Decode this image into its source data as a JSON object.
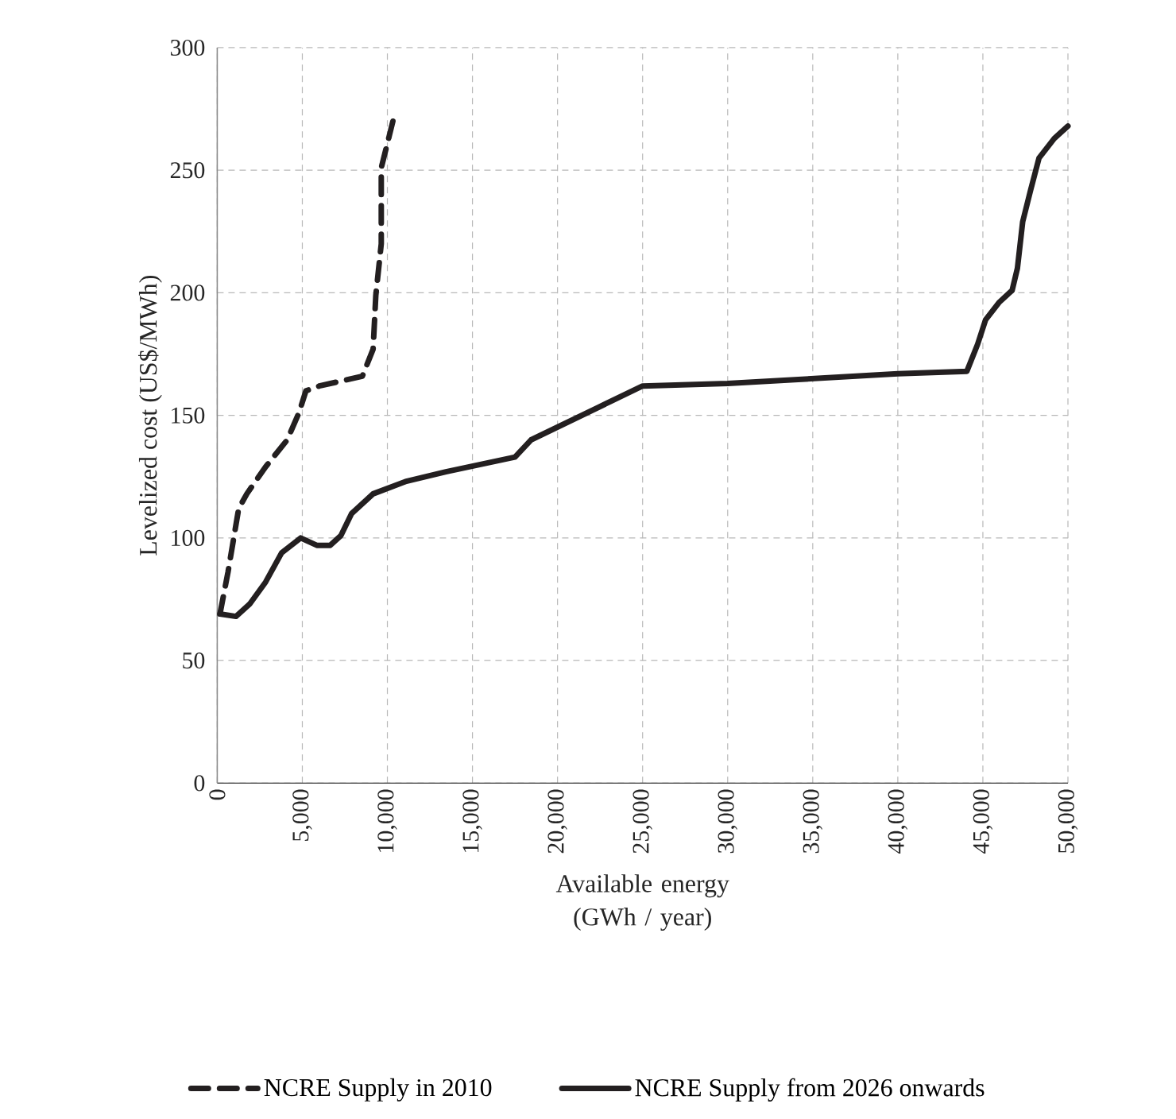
{
  "chart_data": {
    "type": "line",
    "xlabel": "Available energy (GWh / year)",
    "ylabel": "Levelized cost (US$/MWh)",
    "xlim": [
      0,
      50000
    ],
    "ylim": [
      0,
      300
    ],
    "xticks": [
      0,
      {
        "value": 5000,
        "label": "5,000"
      },
      {
        "value": 10000,
        "label": "10,000"
      },
      {
        "value": 15000,
        "label": "15,000"
      },
      {
        "value": 20000,
        "label": "20,000"
      },
      {
        "value": 25000,
        "label": "25,000"
      },
      {
        "value": 30000,
        "label": "30,000"
      },
      {
        "value": 35000,
        "label": "35,000"
      },
      {
        "value": 40000,
        "label": "40,000"
      },
      {
        "value": 45000,
        "label": "45,000"
      },
      {
        "value": 50000,
        "label": "50,000"
      }
    ],
    "yticks": [
      0,
      50,
      100,
      150,
      200,
      250,
      300
    ],
    "grid": true,
    "legend": "bottom",
    "marker": "none",
    "series": [
      {
        "name": "NCRE Supply in 2010",
        "color": "#231f20",
        "line_style": "dashed",
        "x": [
          160,
          630,
          1260,
          1740,
          2840,
          4110,
          4800,
          5210,
          6000,
          7270,
          8530,
          9160,
          9320,
          9640,
          9640,
          10110,
          10430
        ],
        "values": [
          69,
          86,
          112,
          118,
          129,
          140,
          151,
          160,
          162,
          164,
          166,
          177,
          199,
          220,
          251,
          264,
          273
        ]
      },
      {
        "name": "NCRE Supply from 2026 onwards",
        "color": "#231f20",
        "line_style": "solid",
        "x": [
          160,
          1100,
          1900,
          2840,
          3790,
          4900,
          5850,
          6640,
          7270,
          7900,
          9160,
          11060,
          13440,
          17500,
          18440,
          25000,
          30000,
          35000,
          40000,
          44060,
          44690,
          45160,
          45940,
          46720,
          47030,
          47340,
          47810,
          48300,
          49200,
          50000
        ],
        "values": [
          69,
          68,
          73,
          82,
          94,
          100,
          97,
          97,
          101,
          110,
          118,
          123,
          127,
          133,
          140,
          162,
          163,
          165,
          167,
          168,
          179,
          189,
          196,
          201,
          210,
          229,
          242,
          255,
          263,
          268
        ]
      }
    ]
  }
}
